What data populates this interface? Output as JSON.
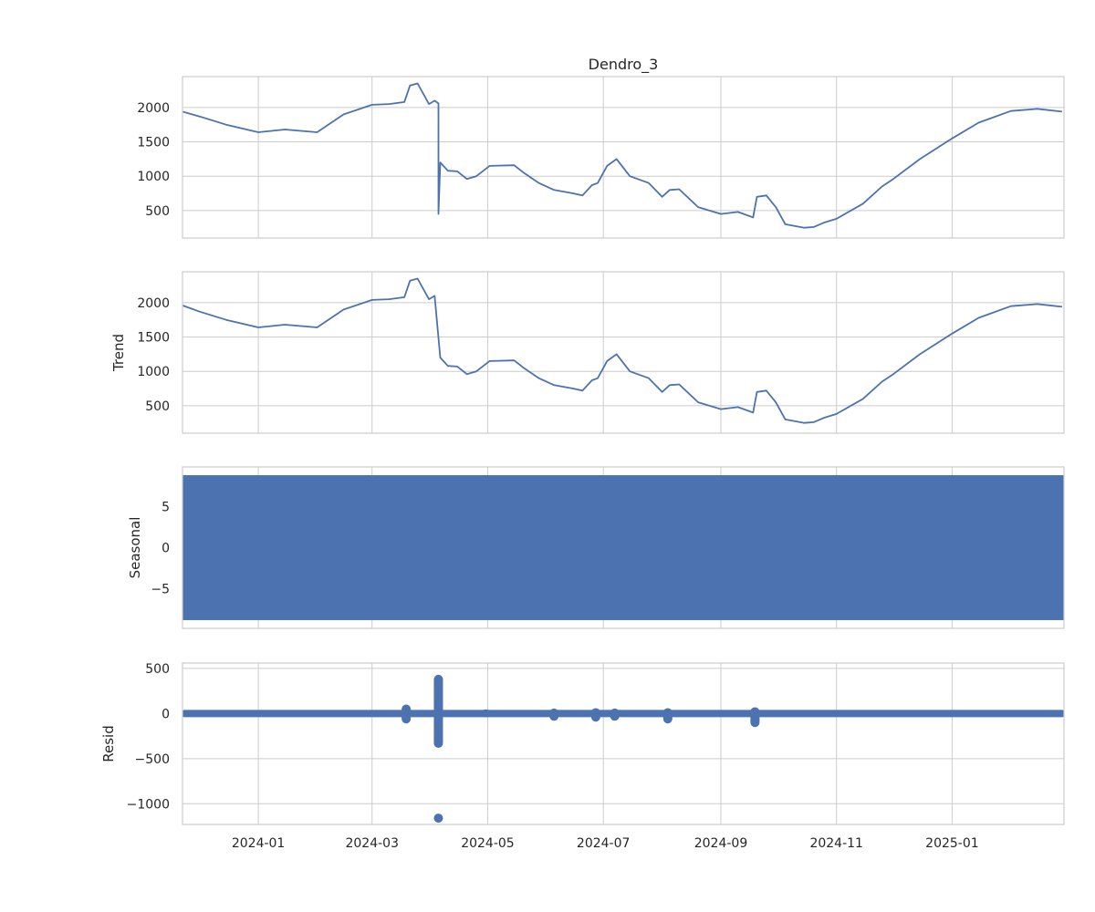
{
  "chart_data": [
    {
      "type": "line",
      "panel": "observed",
      "title": "Dendro_3",
      "ylabel": "",
      "ylim": [
        100,
        2450
      ],
      "yticks": [
        500,
        1000,
        1500,
        2000
      ],
      "series_color": "#4c72b0",
      "grid": true,
      "x": [
        "2023-11-22",
        "2023-12-01",
        "2023-12-15",
        "2024-01-01",
        "2024-01-15",
        "2024-02-01",
        "2024-02-15",
        "2024-03-01",
        "2024-03-10",
        "2024-03-18",
        "2024-03-21",
        "2024-03-25",
        "2024-03-31",
        "2024-04-03",
        "2024-04-05",
        "2024-04-05",
        "2024-04-06",
        "2024-04-10",
        "2024-04-15",
        "2024-04-20",
        "2024-04-25",
        "2024-05-02",
        "2024-05-15",
        "2024-05-20",
        "2024-05-28",
        "2024-06-05",
        "2024-06-15",
        "2024-06-20",
        "2024-06-25",
        "2024-06-28",
        "2024-07-03",
        "2024-07-08",
        "2024-07-15",
        "2024-07-25",
        "2024-08-01",
        "2024-08-05",
        "2024-08-10",
        "2024-08-20",
        "2024-09-01",
        "2024-09-10",
        "2024-09-18",
        "2024-09-20",
        "2024-09-25",
        "2024-09-30",
        "2024-10-05",
        "2024-10-15",
        "2024-10-20",
        "2024-10-25",
        "2024-11-01",
        "2024-11-15",
        "2024-11-25",
        "2024-12-01",
        "2024-12-15",
        "2025-01-01",
        "2025-01-15",
        "2025-02-01",
        "2025-02-15",
        "2025-02-28"
      ],
      "values": [
        1940,
        1870,
        1750,
        1640,
        1680,
        1640,
        1900,
        2040,
        2050,
        2080,
        2320,
        2350,
        2050,
        2100,
        2060,
        450,
        1200,
        1080,
        1070,
        960,
        1000,
        1150,
        1160,
        1050,
        900,
        800,
        750,
        720,
        870,
        900,
        1150,
        1250,
        1000,
        900,
        700,
        800,
        810,
        550,
        450,
        480,
        400,
        700,
        720,
        550,
        300,
        250,
        260,
        320,
        380,
        600,
        850,
        960,
        1250,
        1550,
        1780,
        1950,
        1980,
        1940
      ]
    },
    {
      "type": "line",
      "panel": "trend",
      "title": "",
      "ylabel": "Trend",
      "ylim": [
        100,
        2450
      ],
      "yticks": [
        500,
        1000,
        1500,
        2000
      ],
      "series_color": "#4c72b0",
      "grid": true,
      "x": [
        "2023-11-22",
        "2023-12-01",
        "2023-12-15",
        "2024-01-01",
        "2024-01-15",
        "2024-02-01",
        "2024-02-15",
        "2024-03-01",
        "2024-03-10",
        "2024-03-18",
        "2024-03-21",
        "2024-03-25",
        "2024-03-31",
        "2024-04-03",
        "2024-04-06",
        "2024-04-10",
        "2024-04-15",
        "2024-04-20",
        "2024-04-25",
        "2024-05-02",
        "2024-05-15",
        "2024-05-20",
        "2024-05-28",
        "2024-06-05",
        "2024-06-15",
        "2024-06-20",
        "2024-06-25",
        "2024-06-28",
        "2024-07-03",
        "2024-07-08",
        "2024-07-15",
        "2024-07-25",
        "2024-08-01",
        "2024-08-05",
        "2024-08-10",
        "2024-08-20",
        "2024-09-01",
        "2024-09-10",
        "2024-09-18",
        "2024-09-20",
        "2024-09-25",
        "2024-09-30",
        "2024-10-05",
        "2024-10-15",
        "2024-10-20",
        "2024-10-25",
        "2024-11-01",
        "2024-11-15",
        "2024-11-25",
        "2024-12-01",
        "2024-12-15",
        "2025-01-01",
        "2025-01-15",
        "2025-02-01",
        "2025-02-15",
        "2025-02-28"
      ],
      "values": [
        1960,
        1870,
        1750,
        1640,
        1680,
        1640,
        1900,
        2040,
        2050,
        2080,
        2320,
        2350,
        2050,
        2100,
        1200,
        1080,
        1070,
        960,
        1000,
        1150,
        1160,
        1050,
        900,
        800,
        750,
        720,
        870,
        900,
        1150,
        1250,
        1000,
        900,
        700,
        800,
        810,
        550,
        450,
        480,
        400,
        700,
        720,
        550,
        300,
        250,
        260,
        320,
        380,
        600,
        850,
        960,
        1250,
        1550,
        1780,
        1950,
        1980,
        1940
      ]
    },
    {
      "type": "line",
      "panel": "seasonal",
      "title": "",
      "ylabel": "Seasonal",
      "ylim": [
        -9.8,
        9.8
      ],
      "yticks": [
        -5,
        0,
        5
      ],
      "series_color": "#4c72b0",
      "grid": true,
      "band": {
        "min": -8.8,
        "max": 8.8
      }
    },
    {
      "type": "scatter",
      "panel": "resid",
      "title": "",
      "ylabel": "Resid",
      "ylim": [
        -1230,
        560
      ],
      "yticks": [
        -1000,
        -500,
        0,
        500
      ],
      "series_color": "#4c72b0",
      "grid": true,
      "baseline_band": {
        "min": -40,
        "max": 40
      },
      "bursts": [
        {
          "x": "2024-03-19",
          "min": -110,
          "max": 100
        },
        {
          "x": "2024-04-05",
          "min": -380,
          "max": 430
        },
        {
          "x": "2024-04-30",
          "min": -40,
          "max": 45
        },
        {
          "x": "2024-06-05",
          "min": -80,
          "max": 55
        },
        {
          "x": "2024-06-27",
          "min": -90,
          "max": 60
        },
        {
          "x": "2024-07-07",
          "min": -80,
          "max": 55
        },
        {
          "x": "2024-08-04",
          "min": -110,
          "max": 60
        },
        {
          "x": "2024-09-19",
          "min": -150,
          "max": 70
        }
      ],
      "points": [
        {
          "x": "2024-04-05",
          "y": -1160
        }
      ]
    }
  ],
  "x_axis": {
    "domain": [
      "2023-11-22",
      "2025-03-01"
    ],
    "ticks": [
      {
        "date": "2024-01-01",
        "label": "2024-01"
      },
      {
        "date": "2024-03-01",
        "label": "2024-03"
      },
      {
        "date": "2024-05-01",
        "label": "2024-05"
      },
      {
        "date": "2024-07-01",
        "label": "2024-07"
      },
      {
        "date": "2024-09-01",
        "label": "2024-09"
      },
      {
        "date": "2024-11-01",
        "label": "2024-11"
      },
      {
        "date": "2025-01-01",
        "label": "2025-01"
      }
    ]
  }
}
